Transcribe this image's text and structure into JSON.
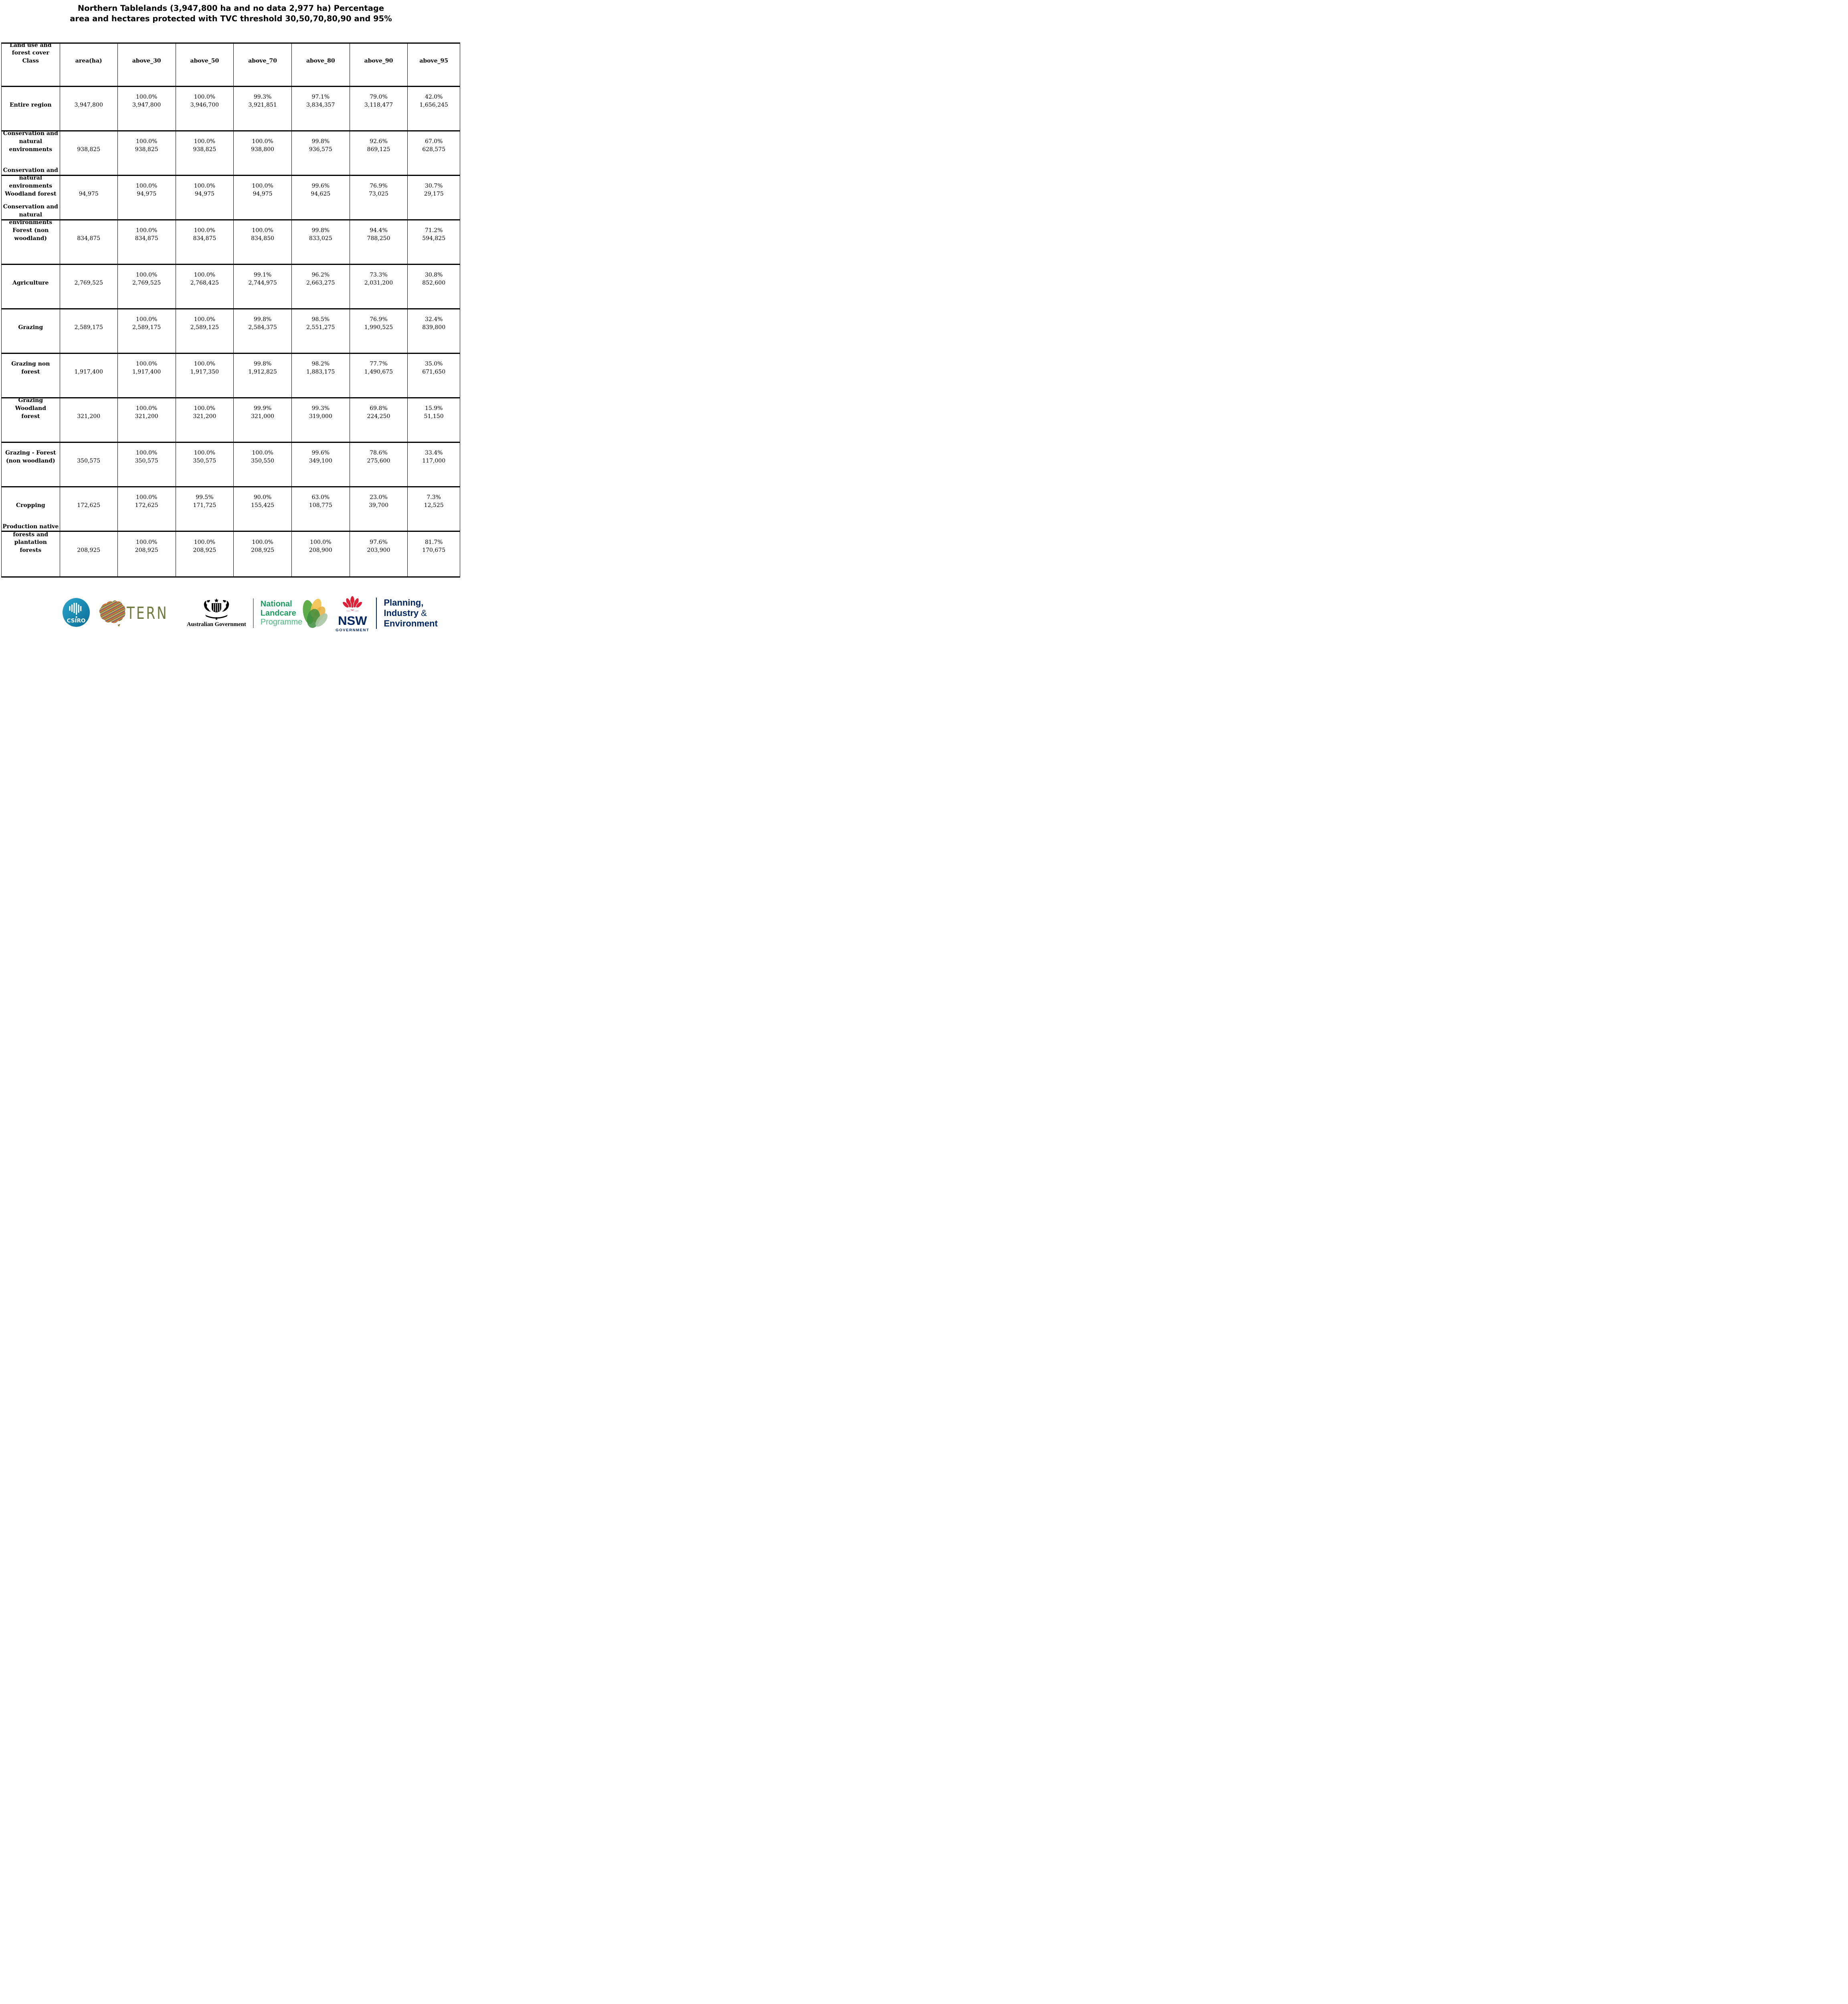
{
  "title": {
    "line1": "Northern Tablelands (3,947,800 ha and no data 2,977 ha) Percentage",
    "line2": "area and hectares protected with TVC threshold 30,50,70,80,90 and 95%"
  },
  "chart_data": {
    "type": "table",
    "title": "Northern Tablelands (3,947,800 ha and no data 2,977 ha) Percentage area and hectares protected with TVC threshold 30,50,70,80,90 and 95%",
    "columns": [
      "Land use and\nforest cover\nClass",
      "area(ha)",
      "above_30",
      "above_50",
      "above_70",
      "above_80",
      "above_90",
      "above_95"
    ],
    "rows": [
      {
        "class": "Entire region",
        "area": "3,947,800",
        "values": [
          {
            "pct": "100.0%",
            "ha": "3,947,800"
          },
          {
            "pct": "100.0%",
            "ha": "3,946,700"
          },
          {
            "pct": "99.3%",
            "ha": "3,921,851"
          },
          {
            "pct": "97.1%",
            "ha": "3,834,357"
          },
          {
            "pct": "79.0%",
            "ha": "3,118,477"
          },
          {
            "pct": "42.0%",
            "ha": "1,656,245"
          }
        ]
      },
      {
        "class": "Conservation and\nnatural\nenvironments",
        "area": "938,825",
        "values": [
          {
            "pct": "100.0%",
            "ha": "938,825"
          },
          {
            "pct": "100.0%",
            "ha": "938,825"
          },
          {
            "pct": "100.0%",
            "ha": "938,800"
          },
          {
            "pct": "99.8%",
            "ha": "936,575"
          },
          {
            "pct": "92.6%",
            "ha": "869,125"
          },
          {
            "pct": "67.0%",
            "ha": "628,575"
          }
        ]
      },
      {
        "class": "Conservation and\nnatural\nenvironments\nWoodland forest",
        "area": "94,975",
        "values": [
          {
            "pct": "100.0%",
            "ha": "94,975"
          },
          {
            "pct": "100.0%",
            "ha": "94,975"
          },
          {
            "pct": "100.0%",
            "ha": "94,975"
          },
          {
            "pct": "99.6%",
            "ha": "94,625"
          },
          {
            "pct": "76.9%",
            "ha": "73,025"
          },
          {
            "pct": "30.7%",
            "ha": "29,175"
          }
        ]
      },
      {
        "class": "Conservation and\nnatural\nenvironments\nForest (non\nwoodland)",
        "area": "834,875",
        "values": [
          {
            "pct": "100.0%",
            "ha": "834,875"
          },
          {
            "pct": "100.0%",
            "ha": "834,875"
          },
          {
            "pct": "100.0%",
            "ha": "834,850"
          },
          {
            "pct": "99.8%",
            "ha": "833,025"
          },
          {
            "pct": "94.4%",
            "ha": "788,250"
          },
          {
            "pct": "71.2%",
            "ha": "594,825"
          }
        ]
      },
      {
        "class": "Agriculture",
        "area": "2,769,525",
        "values": [
          {
            "pct": "100.0%",
            "ha": "2,769,525"
          },
          {
            "pct": "100.0%",
            "ha": "2,768,425"
          },
          {
            "pct": "99.1%",
            "ha": "2,744,975"
          },
          {
            "pct": "96.2%",
            "ha": "2,663,275"
          },
          {
            "pct": "73.3%",
            "ha": "2,031,200"
          },
          {
            "pct": "30.8%",
            "ha": "852,600"
          }
        ]
      },
      {
        "class": "Grazing",
        "area": "2,589,175",
        "values": [
          {
            "pct": "100.0%",
            "ha": "2,589,175"
          },
          {
            "pct": "100.0%",
            "ha": "2,589,125"
          },
          {
            "pct": "99.8%",
            "ha": "2,584,375"
          },
          {
            "pct": "98.5%",
            "ha": "2,551,275"
          },
          {
            "pct": "76.9%",
            "ha": "1,990,525"
          },
          {
            "pct": "32.4%",
            "ha": "839,800"
          }
        ]
      },
      {
        "class": "Grazing non\nforest",
        "area": "1,917,400",
        "values": [
          {
            "pct": "100.0%",
            "ha": "1,917,400"
          },
          {
            "pct": "100.0%",
            "ha": "1,917,350"
          },
          {
            "pct": "99.8%",
            "ha": "1,912,825"
          },
          {
            "pct": "98.2%",
            "ha": "1,883,175"
          },
          {
            "pct": "77.7%",
            "ha": "1,490,675"
          },
          {
            "pct": "35.0%",
            "ha": "671,650"
          }
        ]
      },
      {
        "class": "Grazing Woodland\nforest",
        "area": "321,200",
        "values": [
          {
            "pct": "100.0%",
            "ha": "321,200"
          },
          {
            "pct": "100.0%",
            "ha": "321,200"
          },
          {
            "pct": "99.9%",
            "ha": "321,000"
          },
          {
            "pct": "99.3%",
            "ha": "319,000"
          },
          {
            "pct": "69.8%",
            "ha": "224,250"
          },
          {
            "pct": "15.9%",
            "ha": "51,150"
          }
        ]
      },
      {
        "class": "Grazing - Forest\n(non woodland)",
        "area": "350,575",
        "values": [
          {
            "pct": "100.0%",
            "ha": "350,575"
          },
          {
            "pct": "100.0%",
            "ha": "350,575"
          },
          {
            "pct": "100.0%",
            "ha": "350,550"
          },
          {
            "pct": "99.6%",
            "ha": "349,100"
          },
          {
            "pct": "78.6%",
            "ha": "275,600"
          },
          {
            "pct": "33.4%",
            "ha": "117,000"
          }
        ]
      },
      {
        "class": "Cropping",
        "area": "172,625",
        "values": [
          {
            "pct": "100.0%",
            "ha": "172,625"
          },
          {
            "pct": "99.5%",
            "ha": "171,725"
          },
          {
            "pct": "90.0%",
            "ha": "155,425"
          },
          {
            "pct": "63.0%",
            "ha": "108,775"
          },
          {
            "pct": "23.0%",
            "ha": "39,700"
          },
          {
            "pct": "7.3%",
            "ha": "12,525"
          }
        ]
      },
      {
        "class": "Production native\nforests and\nplantation\nforests",
        "area": "208,925",
        "values": [
          {
            "pct": "100.0%",
            "ha": "208,925"
          },
          {
            "pct": "100.0%",
            "ha": "208,925"
          },
          {
            "pct": "100.0%",
            "ha": "208,925"
          },
          {
            "pct": "100.0%",
            "ha": "208,900"
          },
          {
            "pct": "97.6%",
            "ha": "203,900"
          },
          {
            "pct": "81.7%",
            "ha": "170,675"
          }
        ]
      }
    ]
  },
  "footer": {
    "csiro": {
      "label": "CSIRO"
    },
    "tern": {
      "label": "TERN"
    },
    "aus_gov": {
      "caption": "Australian Government"
    },
    "landcare": {
      "line1": "National",
      "line2": "Landcare",
      "line3": "Programme"
    },
    "nsw": {
      "word": "NSW",
      "sub": "GOVERNMENT"
    },
    "dept": {
      "line1": "Planning,",
      "line2_main": "Industry",
      "line2_amp": "&",
      "line3": "Environment"
    }
  },
  "theme": {
    "navy": "#002664",
    "nsw-red": "#DE1F35",
    "csiro-a": "#2BA8CD",
    "csiro-b": "#0A6C94",
    "tern-olive": "#6F7B3E",
    "landcare-green": "#18A05C",
    "landcare-light": "#4CB97E"
  }
}
